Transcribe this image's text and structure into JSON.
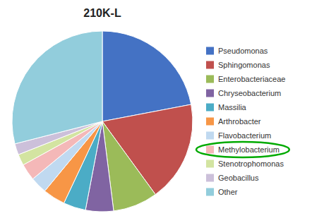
{
  "chart_data": {
    "type": "pie",
    "title": "210K-L",
    "categories": [
      "Pseudomonas",
      "Sphingomonas",
      "Enterobacteriaceae",
      "Chryseobacterium",
      "Massilia",
      "Arthrobacter",
      "Flavobacterium",
      "Methylobacterium",
      "Stenotrophomonas",
      "Geobacillus",
      "Other"
    ],
    "values": [
      22,
      18,
      8,
      5,
      4,
      4,
      3,
      3,
      2,
      2,
      29
    ],
    "colors": [
      "#4472C4",
      "#C0504D",
      "#9BBB59",
      "#8064A2",
      "#4BACC6",
      "#F79646",
      "#C0D9F0",
      "#F4B8B8",
      "#D3E4A1",
      "#CCC0DA",
      "#92CDDC"
    ],
    "legend": "right",
    "annotations": [
      {
        "shape": "ellipse",
        "target": "Methylobacterium",
        "color": "#00AA00"
      }
    ]
  }
}
